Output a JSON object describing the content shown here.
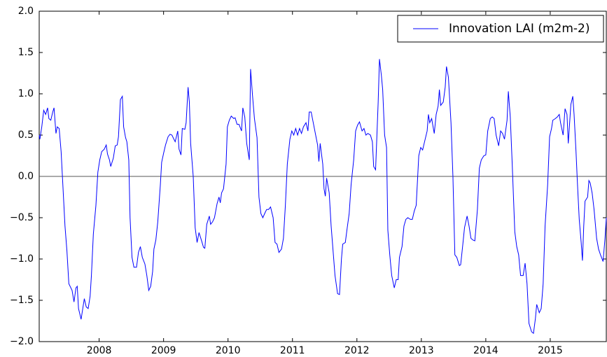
{
  "chart_data": {
    "type": "line",
    "series": [
      {
        "name": "Innovation LAI (m2m-2)",
        "color": "#0000ff",
        "x": [
          2007.07,
          2007.08,
          2007.11,
          2007.14,
          2007.17,
          2007.2,
          2007.22,
          2007.25,
          2007.28,
          2007.3,
          2007.33,
          2007.35,
          2007.38,
          2007.41,
          2007.43,
          2007.47,
          2007.5,
          2007.53,
          2007.58,
          2007.61,
          2007.64,
          2007.66,
          2007.68,
          2007.72,
          2007.75,
          2007.77,
          2007.8,
          2007.83,
          2007.86,
          2007.88,
          2007.91,
          2007.95,
          2007.98,
          2008.01,
          2008.04,
          2008.08,
          2008.11,
          2008.13,
          2008.16,
          2008.18,
          2008.22,
          2008.25,
          2008.28,
          2008.3,
          2008.33,
          2008.36,
          2008.38,
          2008.41,
          2008.43,
          2008.46,
          2008.48,
          2008.51,
          2008.54,
          2008.58,
          2008.61,
          2008.64,
          2008.67,
          2008.71,
          2008.74,
          2008.77,
          2008.8,
          2008.83,
          2008.85,
          2008.88,
          2008.91,
          2008.95,
          2008.97,
          2009.0,
          2009.03,
          2009.07,
          2009.1,
          2009.13,
          2009.16,
          2009.18,
          2009.22,
          2009.24,
          2009.27,
          2009.29,
          2009.33,
          2009.35,
          2009.38,
          2009.4,
          2009.42,
          2009.46,
          2009.49,
          2009.52,
          2009.55,
          2009.59,
          2009.62,
          2009.64,
          2009.67,
          2009.71,
          2009.73,
          2009.76,
          2009.79,
          2009.83,
          2009.86,
          2009.88,
          2009.9,
          2009.93,
          2009.97,
          2009.99,
          2010.02,
          2010.05,
          2010.09,
          2010.11,
          2010.14,
          2010.17,
          2010.21,
          2010.23,
          2010.26,
          2010.29,
          2010.33,
          2010.35,
          2010.38,
          2010.41,
          2010.45,
          2010.48,
          2010.51,
          2010.54,
          2010.58,
          2010.6,
          2010.63,
          2010.66,
          2010.7,
          2010.73,
          2010.76,
          2010.79,
          2010.83,
          2010.86,
          2010.89,
          2010.92,
          2010.96,
          2010.99,
          2011.02,
          2011.05,
          2011.08,
          2011.11,
          2011.14,
          2011.17,
          2011.21,
          2011.24,
          2011.26,
          2011.29,
          2011.33,
          2011.36,
          2011.39,
          2011.41,
          2011.43,
          2011.47,
          2011.49,
          2011.51,
          2011.53,
          2011.57,
          2011.6,
          2011.63,
          2011.66,
          2011.7,
          2011.73,
          2011.76,
          2011.78,
          2011.82,
          2011.85,
          2011.88,
          2011.91,
          2011.95,
          2011.98,
          2012.01,
          2012.04,
          2012.08,
          2012.11,
          2012.14,
          2012.17,
          2012.21,
          2012.24,
          2012.26,
          2012.29,
          2012.33,
          2012.35,
          2012.38,
          2012.4,
          2012.43,
          2012.46,
          2012.48,
          2012.51,
          2012.54,
          2012.58,
          2012.61,
          2012.64,
          2012.66,
          2012.7,
          2012.73,
          2012.76,
          2012.79,
          2012.83,
          2012.86,
          2012.89,
          2012.92,
          2012.96,
          2012.99,
          2013.02,
          2013.05,
          2013.09,
          2013.11,
          2013.13,
          2013.16,
          2013.2,
          2013.23,
          2013.26,
          2013.28,
          2013.3,
          2013.34,
          2013.37,
          2013.39,
          2013.42,
          2013.46,
          2013.49,
          2013.52,
          2013.55,
          2013.59,
          2013.61,
          2013.64,
          2013.67,
          2013.71,
          2013.74,
          2013.77,
          2013.8,
          2013.83,
          2013.87,
          2013.9,
          2013.93,
          2013.97,
          2014.0,
          2014.03,
          2014.07,
          2014.1,
          2014.13,
          2014.16,
          2014.2,
          2014.23,
          2014.26,
          2014.29,
          2014.33,
          2014.35,
          2014.38,
          2014.41,
          2014.45,
          2014.48,
          2014.51,
          2014.54,
          2014.58,
          2014.61,
          2014.64,
          2014.67,
          2014.71,
          2014.74,
          2014.77,
          2014.79,
          2014.83,
          2014.86,
          2014.89,
          2014.92,
          2014.96,
          2014.99,
          2015.02,
          2015.04,
          2015.08,
          2015.11,
          2015.14,
          2015.16,
          2015.2,
          2015.23,
          2015.26,
          2015.28,
          2015.32,
          2015.35,
          2015.37,
          2015.4,
          2015.42,
          2015.45,
          2015.48,
          2015.5,
          2015.52,
          2015.54,
          2015.58,
          2015.6,
          2015.62,
          2015.65,
          2015.68,
          2015.72,
          2015.75,
          2015.78,
          2015.82,
          2015.85,
          2015.87
        ],
        "values": [
          0.5,
          0.45,
          0.6,
          0.8,
          0.75,
          0.83,
          0.7,
          0.68,
          0.78,
          0.83,
          0.52,
          0.6,
          0.58,
          0.3,
          0.0,
          -0.6,
          -0.9,
          -1.3,
          -1.38,
          -1.52,
          -1.35,
          -1.33,
          -1.6,
          -1.73,
          -1.58,
          -1.48,
          -1.58,
          -1.6,
          -1.45,
          -1.2,
          -0.7,
          -0.35,
          0.05,
          0.2,
          0.3,
          0.33,
          0.38,
          0.27,
          0.2,
          0.12,
          0.22,
          0.37,
          0.38,
          0.48,
          0.93,
          0.97,
          0.6,
          0.47,
          0.42,
          0.2,
          -0.5,
          -0.98,
          -1.1,
          -1.1,
          -0.92,
          -0.85,
          -0.98,
          -1.06,
          -1.2,
          -1.38,
          -1.33,
          -1.15,
          -0.88,
          -0.77,
          -0.55,
          -0.1,
          0.17,
          0.28,
          0.38,
          0.48,
          0.51,
          0.5,
          0.45,
          0.42,
          0.55,
          0.33,
          0.26,
          0.58,
          0.57,
          0.65,
          1.08,
          0.9,
          0.4,
          0.0,
          -0.62,
          -0.8,
          -0.68,
          -0.78,
          -0.86,
          -0.87,
          -0.58,
          -0.48,
          -0.58,
          -0.55,
          -0.5,
          -0.33,
          -0.25,
          -0.32,
          -0.2,
          -0.15,
          0.15,
          0.6,
          0.68,
          0.73,
          0.7,
          0.71,
          0.63,
          0.63,
          0.55,
          0.83,
          0.72,
          0.4,
          0.2,
          1.3,
          0.98,
          0.7,
          0.47,
          -0.25,
          -0.45,
          -0.5,
          -0.43,
          -0.4,
          -0.4,
          -0.37,
          -0.5,
          -0.8,
          -0.82,
          -0.92,
          -0.88,
          -0.75,
          -0.35,
          0.15,
          0.45,
          0.55,
          0.5,
          0.58,
          0.5,
          0.58,
          0.52,
          0.6,
          0.65,
          0.55,
          0.78,
          0.78,
          0.62,
          0.5,
          0.38,
          0.18,
          0.4,
          0.15,
          -0.15,
          -0.24,
          -0.02,
          -0.2,
          -0.6,
          -0.9,
          -1.2,
          -1.42,
          -1.43,
          -1.0,
          -0.82,
          -0.8,
          -0.62,
          -0.45,
          -0.1,
          0.2,
          0.55,
          0.62,
          0.66,
          0.55,
          0.58,
          0.5,
          0.52,
          0.5,
          0.42,
          0.12,
          0.08,
          0.9,
          1.42,
          1.22,
          1.05,
          0.5,
          0.35,
          -0.65,
          -0.95,
          -1.2,
          -1.35,
          -1.25,
          -1.25,
          -0.98,
          -0.85,
          -0.6,
          -0.52,
          -0.5,
          -0.52,
          -0.52,
          -0.42,
          -0.35,
          0.25,
          0.35,
          0.32,
          0.42,
          0.55,
          0.75,
          0.65,
          0.7,
          0.52,
          0.75,
          0.85,
          1.05,
          0.86,
          0.9,
          1.08,
          1.33,
          1.2,
          0.65,
          0.0,
          -0.95,
          -0.98,
          -1.08,
          -1.07,
          -0.85,
          -0.62,
          -0.48,
          -0.6,
          -0.75,
          -0.77,
          -0.78,
          -0.4,
          0.1,
          0.2,
          0.25,
          0.26,
          0.55,
          0.7,
          0.72,
          0.7,
          0.5,
          0.37,
          0.55,
          0.52,
          0.45,
          0.68,
          1.03,
          0.72,
          0.15,
          -0.67,
          -0.85,
          -0.95,
          -1.2,
          -1.2,
          -1.05,
          -1.3,
          -1.78,
          -1.88,
          -1.9,
          -1.72,
          -1.55,
          -1.65,
          -1.6,
          -1.3,
          -0.6,
          -0.1,
          0.48,
          0.58,
          0.68,
          0.7,
          0.72,
          0.75,
          0.65,
          0.5,
          0.82,
          0.75,
          0.4,
          0.87,
          0.97,
          0.75,
          0.3,
          -0.05,
          -0.52,
          -0.8,
          -1.02,
          -0.6,
          -0.3,
          -0.25,
          -0.05,
          -0.08,
          -0.2,
          -0.4,
          -0.75,
          -0.88,
          -0.95,
          -1.03,
          -0.75,
          -0.5
        ]
      }
    ],
    "xlim": [
      2007.07,
      2015.87
    ],
    "xticks": [
      2008,
      2009,
      2010,
      2011,
      2012,
      2013,
      2014,
      2015
    ],
    "ylim": [
      -2,
      2
    ],
    "yticks": [
      {
        "value": -2,
        "label": "−2.0"
      },
      {
        "value": -1.5,
        "label": "−1.5"
      },
      {
        "value": -1,
        "label": "−1.0"
      },
      {
        "value": -0.5,
        "label": "−0.5"
      },
      {
        "value": 0,
        "label": "0.0"
      },
      {
        "value": 0.5,
        "label": "0.5"
      },
      {
        "value": 1,
        "label": "1.0"
      },
      {
        "value": 1.5,
        "label": "1.5"
      },
      {
        "value": 2,
        "label": "2.0"
      }
    ],
    "axhline": 0,
    "legend": "upper right",
    "grid": false
  }
}
